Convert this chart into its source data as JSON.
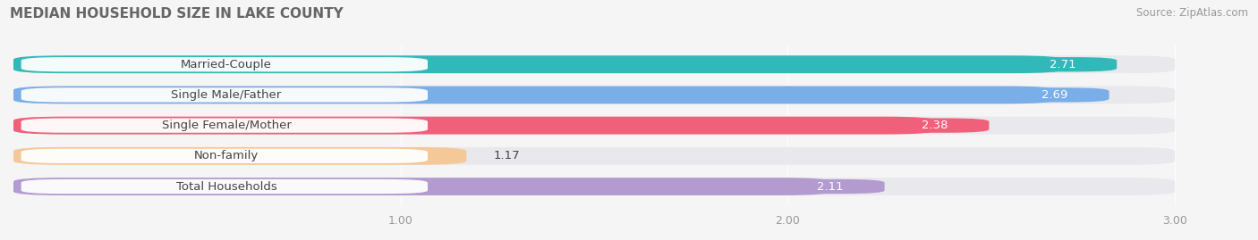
{
  "title": "MEDIAN HOUSEHOLD SIZE IN LAKE COUNTY",
  "source": "Source: ZipAtlas.com",
  "categories": [
    "Married-Couple",
    "Single Male/Father",
    "Single Female/Mother",
    "Non-family",
    "Total Households"
  ],
  "values": [
    2.71,
    2.69,
    2.38,
    1.17,
    2.11
  ],
  "colors": [
    "#31b8b8",
    "#7aaee8",
    "#f0607a",
    "#f5c899",
    "#b39bd0"
  ],
  "xlim_max": 3.18,
  "data_max": 3.0,
  "xticks": [
    1.0,
    2.0,
    3.0
  ],
  "xtick_labels": [
    "1.00",
    "2.00",
    "3.00"
  ],
  "bar_height": 0.58,
  "background_color": "#f5f5f5",
  "bar_bg_color": "#e8e8ed",
  "title_fontsize": 11,
  "source_fontsize": 8.5,
  "label_fontsize": 9.5,
  "value_fontsize": 9.5,
  "label_color": "#444444"
}
